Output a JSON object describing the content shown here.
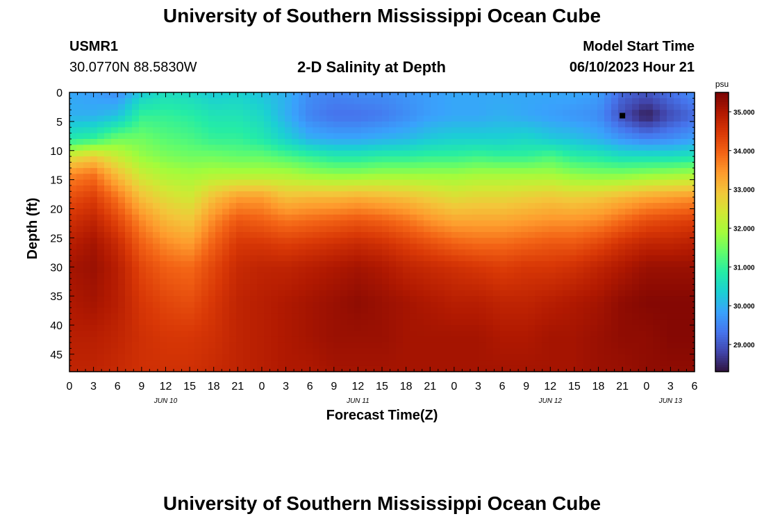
{
  "header": {
    "title": "University of Southern Mississippi Ocean Cube",
    "station_id": "USMR1",
    "coordinates": "30.0770N  88.5830W",
    "chart_title": "2-D Salinity at Depth",
    "model_start_label": "Model Start Time",
    "model_start_value": "06/10/2023 Hour 21"
  },
  "footer": {
    "title": "University of Southern Mississippi Ocean Cube"
  },
  "chart_data": {
    "type": "heatmap",
    "title": "2-D Salinity at Depth",
    "xlabel": "Forecast Time(Z)",
    "ylabel": "Depth (ft)",
    "xlim": [
      0,
      78
    ],
    "ylim": [
      48,
      0
    ],
    "x_tick_values": [
      0,
      3,
      6,
      9,
      12,
      15,
      18,
      21,
      24,
      27,
      30,
      33,
      36,
      39,
      42,
      45,
      48,
      51,
      54,
      57,
      60,
      63,
      66,
      69,
      72,
      75,
      78
    ],
    "x_tick_labels": [
      "0",
      "3",
      "6",
      "9",
      "12",
      "15",
      "18",
      "21",
      "0",
      "3",
      "6",
      "9",
      "12",
      "15",
      "18",
      "21",
      "0",
      "3",
      "6",
      "9",
      "12",
      "15",
      "18",
      "21",
      "0",
      "3",
      "6"
    ],
    "date_labels": [
      {
        "x": 12,
        "text": "JUN 10"
      },
      {
        "x": 36,
        "text": "JUN 11"
      },
      {
        "x": 60,
        "text": "JUN 12"
      },
      {
        "x": 75,
        "text": "JUN 13"
      }
    ],
    "y_tick_values": [
      0,
      5,
      10,
      15,
      20,
      25,
      30,
      35,
      40,
      45
    ],
    "y_tick_labels": [
      "0",
      "5",
      "10",
      "15",
      "20",
      "25",
      "30",
      "35",
      "40",
      "45"
    ],
    "colorbar": {
      "unit": "psu",
      "range": [
        28.3,
        35.5
      ],
      "tick_values": [
        29,
        30,
        31,
        32,
        33,
        34,
        35
      ],
      "tick_labels": [
        "29.000",
        "30.000",
        "31.000",
        "32.000",
        "33.000",
        "34.000",
        "35.000"
      ],
      "colors": [
        "#30123b",
        "#4145ab",
        "#4675ed",
        "#39a2fc",
        "#1bcfd4",
        "#24eca6",
        "#61fc6c",
        "#a4fc3b",
        "#d1e834",
        "#f3c63a",
        "#fe9b2d",
        "#f36315",
        "#d93806",
        "#b11901",
        "#7a0403"
      ]
    },
    "salinity_profiles": [
      {
        "x": 0,
        "depth": [
          0,
          4,
          8,
          11,
          14,
          18,
          22,
          26,
          30,
          36,
          42,
          48
        ],
        "salinity": [
          29.9,
          30.0,
          30.8,
          32.5,
          33.6,
          34.2,
          34.6,
          34.9,
          35.1,
          35.0,
          34.9,
          34.8
        ]
      },
      {
        "x": 3,
        "depth": [
          0,
          4,
          8,
          11,
          14,
          18,
          22,
          26,
          30,
          36,
          42,
          48
        ],
        "salinity": [
          29.8,
          30.0,
          31.0,
          32.8,
          33.8,
          34.4,
          34.8,
          35.1,
          35.2,
          35.1,
          34.9,
          34.8
        ]
      },
      {
        "x": 6,
        "depth": [
          0,
          4,
          8,
          11,
          14,
          18,
          22,
          26,
          30,
          36,
          42,
          48
        ],
        "salinity": [
          29.6,
          30.2,
          31.5,
          32.3,
          33.0,
          33.8,
          34.3,
          34.7,
          34.9,
          34.9,
          34.8,
          34.7
        ]
      },
      {
        "x": 9,
        "depth": [
          0,
          4,
          8,
          11,
          14,
          18,
          22,
          26,
          30,
          36,
          42,
          48
        ],
        "salinity": [
          30.3,
          31.0,
          31.5,
          31.8,
          32.3,
          33.0,
          33.6,
          34.0,
          34.3,
          34.5,
          34.6,
          34.6
        ]
      },
      {
        "x": 12,
        "depth": [
          0,
          4,
          8,
          11,
          14,
          18,
          22,
          26,
          30,
          36,
          42,
          48
        ],
        "salinity": [
          30.6,
          31.0,
          31.3,
          31.6,
          32.0,
          32.6,
          33.1,
          33.6,
          34.0,
          34.3,
          34.5,
          34.6
        ]
      },
      {
        "x": 15,
        "depth": [
          0,
          4,
          8,
          11,
          14,
          18,
          22,
          26,
          30,
          36,
          42,
          48
        ],
        "salinity": [
          30.5,
          30.9,
          31.2,
          31.5,
          31.9,
          32.4,
          32.9,
          33.4,
          33.9,
          34.2,
          34.5,
          34.6
        ]
      },
      {
        "x": 18,
        "depth": [
          0,
          4,
          8,
          11,
          14,
          18,
          22,
          26,
          30,
          36,
          42,
          48
        ],
        "salinity": [
          30.3,
          30.7,
          31.0,
          31.5,
          32.0,
          33.0,
          33.6,
          34.0,
          34.3,
          34.5,
          34.6,
          34.7
        ]
      },
      {
        "x": 21,
        "depth": [
          0,
          4,
          8,
          11,
          14,
          18,
          22,
          26,
          30,
          36,
          42,
          48
        ],
        "salinity": [
          30.4,
          30.7,
          31.0,
          31.4,
          32.0,
          33.4,
          34.1,
          34.5,
          34.7,
          34.8,
          34.8,
          34.8
        ]
      },
      {
        "x": 24,
        "depth": [
          0,
          4,
          8,
          11,
          14,
          18,
          22,
          26,
          30,
          36,
          42,
          48
        ],
        "salinity": [
          30.2,
          30.5,
          30.8,
          31.4,
          32.0,
          33.4,
          34.0,
          34.5,
          34.8,
          34.9,
          34.9,
          34.9
        ]
      },
      {
        "x": 27,
        "depth": [
          0,
          4,
          8,
          11,
          14,
          18,
          22,
          26,
          30,
          36,
          42,
          48
        ],
        "salinity": [
          30.0,
          30.0,
          30.4,
          31.2,
          32.0,
          33.0,
          33.8,
          34.4,
          34.8,
          35.0,
          35.0,
          35.0
        ]
      },
      {
        "x": 30,
        "depth": [
          0,
          4,
          8,
          11,
          14,
          18,
          22,
          26,
          30,
          36,
          42,
          48
        ],
        "salinity": [
          29.6,
          29.5,
          30.0,
          31.0,
          31.8,
          33.1,
          33.9,
          34.5,
          34.9,
          35.1,
          35.1,
          35.0
        ]
      },
      {
        "x": 33,
        "depth": [
          0,
          4,
          8,
          11,
          14,
          18,
          22,
          26,
          30,
          36,
          42,
          48
        ],
        "salinity": [
          29.5,
          29.3,
          29.9,
          30.8,
          31.7,
          33.1,
          34.0,
          34.6,
          35.0,
          35.2,
          35.2,
          35.1
        ]
      },
      {
        "x": 36,
        "depth": [
          0,
          4,
          8,
          11,
          14,
          18,
          22,
          26,
          30,
          36,
          42,
          48
        ],
        "salinity": [
          29.6,
          29.3,
          29.9,
          30.8,
          31.7,
          33.2,
          34.1,
          34.7,
          35.1,
          35.3,
          35.2,
          35.1
        ]
      },
      {
        "x": 39,
        "depth": [
          0,
          4,
          8,
          11,
          14,
          18,
          22,
          26,
          30,
          36,
          42,
          48
        ],
        "salinity": [
          29.6,
          29.4,
          30.0,
          30.9,
          31.8,
          33.1,
          34.0,
          34.6,
          35.0,
          35.2,
          35.2,
          35.1
        ]
      },
      {
        "x": 42,
        "depth": [
          0,
          4,
          8,
          11,
          14,
          18,
          22,
          26,
          30,
          36,
          42,
          48
        ],
        "salinity": [
          29.7,
          29.6,
          30.1,
          30.9,
          31.8,
          33.0,
          33.8,
          34.4,
          34.8,
          35.1,
          35.1,
          35.1
        ]
      },
      {
        "x": 45,
        "depth": [
          0,
          4,
          8,
          11,
          14,
          18,
          22,
          26,
          30,
          36,
          42,
          48
        ],
        "salinity": [
          29.8,
          29.8,
          30.3,
          31.0,
          31.8,
          32.8,
          33.5,
          34.2,
          34.7,
          35.0,
          35.1,
          35.1
        ]
      },
      {
        "x": 48,
        "depth": [
          0,
          4,
          8,
          11,
          14,
          18,
          22,
          26,
          30,
          36,
          42,
          48
        ],
        "salinity": [
          29.9,
          29.9,
          30.4,
          31.0,
          31.8,
          32.6,
          33.3,
          34.0,
          34.6,
          34.9,
          35.1,
          35.1
        ]
      },
      {
        "x": 51,
        "depth": [
          0,
          4,
          8,
          11,
          14,
          18,
          22,
          26,
          30,
          36,
          42,
          48
        ],
        "salinity": [
          29.9,
          29.9,
          30.4,
          31.1,
          31.9,
          32.7,
          33.3,
          33.9,
          34.5,
          34.9,
          35.1,
          35.1
        ]
      },
      {
        "x": 54,
        "depth": [
          0,
          4,
          8,
          11,
          14,
          18,
          22,
          26,
          30,
          36,
          42,
          48
        ],
        "salinity": [
          29.9,
          30.0,
          30.4,
          31.0,
          31.9,
          32.7,
          33.3,
          33.9,
          34.4,
          34.8,
          35.0,
          35.1
        ]
      },
      {
        "x": 57,
        "depth": [
          0,
          4,
          8,
          11,
          14,
          18,
          22,
          26,
          30,
          36,
          42,
          48
        ],
        "salinity": [
          29.9,
          29.9,
          30.5,
          31.0,
          31.9,
          32.8,
          33.4,
          34.0,
          34.5,
          34.8,
          35.0,
          35.1
        ]
      },
      {
        "x": 60,
        "depth": [
          0,
          4,
          8,
          11,
          14,
          18,
          22,
          26,
          30,
          36,
          42,
          48
        ],
        "salinity": [
          29.9,
          29.8,
          30.3,
          31.2,
          31.9,
          32.9,
          33.5,
          34.1,
          34.5,
          34.9,
          35.1,
          35.1
        ]
      },
      {
        "x": 63,
        "depth": [
          0,
          4,
          8,
          11,
          14,
          18,
          22,
          26,
          30,
          36,
          42,
          48
        ],
        "salinity": [
          29.9,
          29.7,
          30.2,
          30.9,
          31.7,
          32.8,
          33.5,
          34.1,
          34.6,
          35.0,
          35.1,
          35.1
        ]
      },
      {
        "x": 66,
        "depth": [
          0,
          4,
          8,
          11,
          14,
          18,
          22,
          26,
          30,
          36,
          42,
          48
        ],
        "salinity": [
          29.8,
          29.6,
          30.0,
          30.8,
          31.6,
          32.9,
          33.6,
          34.3,
          34.8,
          35.1,
          35.2,
          35.2
        ]
      },
      {
        "x": 69,
        "depth": [
          0,
          4,
          8,
          11,
          14,
          18,
          22,
          26,
          30,
          36,
          42,
          48
        ],
        "salinity": [
          29.2,
          28.9,
          29.7,
          30.6,
          31.6,
          33.1,
          33.9,
          34.6,
          35.0,
          35.3,
          35.3,
          35.2
        ]
      },
      {
        "x": 72,
        "depth": [
          0,
          4,
          8,
          11,
          14,
          18,
          22,
          26,
          30,
          36,
          42,
          48
        ],
        "salinity": [
          29.0,
          28.4,
          29.5,
          30.6,
          31.7,
          33.3,
          34.2,
          34.8,
          35.2,
          35.4,
          35.3,
          35.3
        ]
      },
      {
        "x": 75,
        "depth": [
          0,
          4,
          8,
          11,
          14,
          18,
          22,
          26,
          30,
          36,
          42,
          48
        ],
        "salinity": [
          29.3,
          28.9,
          29.6,
          30.6,
          31.8,
          33.4,
          34.3,
          34.8,
          35.2,
          35.4,
          35.4,
          35.3
        ]
      },
      {
        "x": 78,
        "depth": [
          0,
          4,
          8,
          11,
          14,
          18,
          22,
          26,
          30,
          36,
          42,
          48
        ],
        "salinity": [
          29.6,
          29.2,
          29.8,
          30.7,
          31.9,
          33.5,
          34.4,
          34.9,
          35.2,
          35.4,
          35.4,
          35.3
        ]
      }
    ],
    "marker": {
      "x": 69,
      "depth": 4
    }
  }
}
